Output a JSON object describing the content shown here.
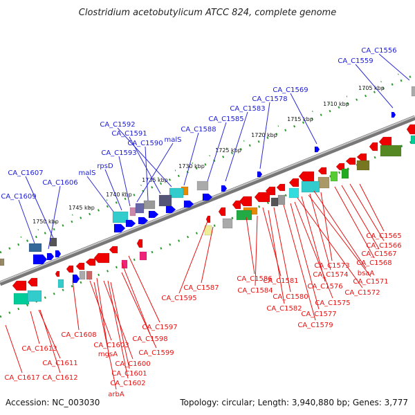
{
  "title": "Clostridium acetobutylicum ATCC 824, complete genome",
  "footer": {
    "accession": "Accession: NC_003030",
    "summary": "Topology: circular; Length: 3,940,880 bp; Genes: 3,777"
  },
  "scale_labels": [
    "1705 kbp",
    "1710 kbp",
    "1715 kbp",
    "1720 kbp",
    "1725 kbp",
    "1730 kbp",
    "1735 kbp",
    "1740 kbp",
    "1745 kbp",
    "1750 kbp"
  ],
  "top_labels": [
    "CA_C1556",
    "CA_C1559",
    "CA_C1569",
    "CA_C1578",
    "CA_C1583",
    "CA_C1585",
    "CA_C1588",
    "CA_C1592",
    "CA_C1591",
    "CA_C1590",
    "malS",
    "CA_C1593",
    "rpsD",
    "malS",
    "CA_C1607",
    "CA_C1606",
    "CA_C1609"
  ],
  "bottom_labels": [
    "CA_C1565",
    "CA_C1566",
    "CA_C1567",
    "CA_C1568",
    "CA_C1573",
    "bsaA",
    "CA_C1574",
    "CA_C1571",
    "CA_C1576",
    "CA_C1572",
    "CA_C1575",
    "CA_C1586",
    "CA_C1581",
    "CA_C1587",
    "CA_C1584",
    "CA_C1580",
    "CA_C1582",
    "CA_C1577",
    "CA_C1579",
    "CA_C1595",
    "CA_C1597",
    "CA_C1598",
    "CA_C1599",
    "CA_C1608",
    "CA_C1603",
    "mgsA",
    "CA_C1600",
    "CA_C1601",
    "CA_C1602",
    "arbA",
    "CA_C1613",
    "CA_C1611",
    "CA_C1612",
    "CA_C1617"
  ],
  "colors": {
    "forward": "#0000ff",
    "reverse": "#ee0000",
    "backbone": "#999999"
  }
}
